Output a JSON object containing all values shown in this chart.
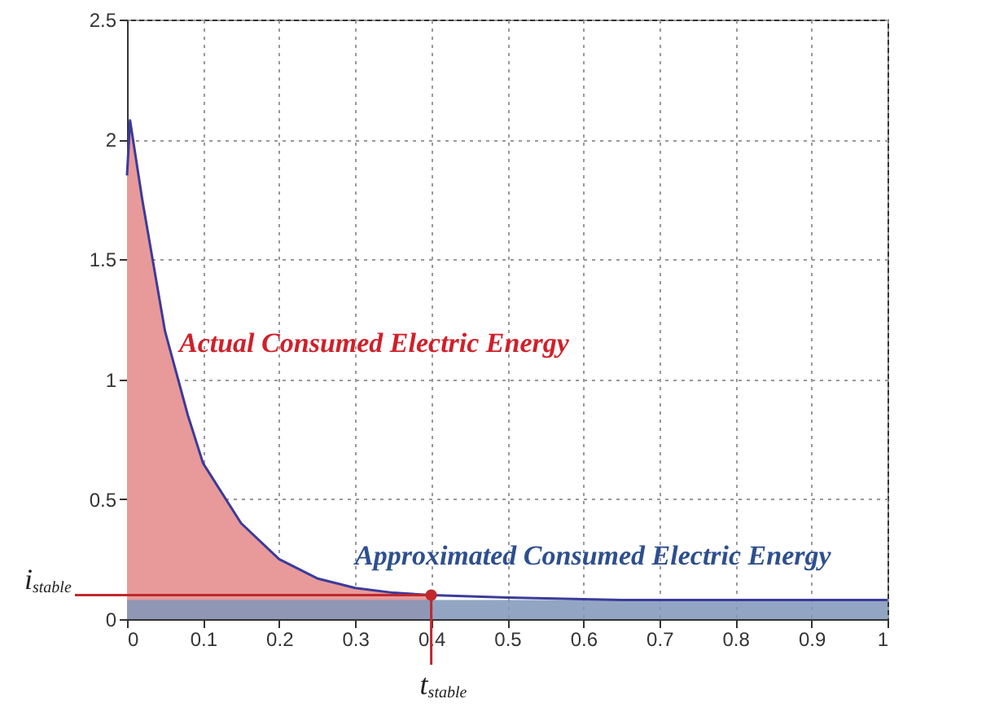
{
  "chart_data": {
    "type": "area",
    "series": [
      {
        "color": "#e89a9a",
        "x": [
          0,
          0.004,
          0.02,
          0.05,
          0.08,
          0.1,
          0.15,
          0.2,
          0.25,
          0.3,
          0.35,
          0.4
        ],
        "values": [
          1.85,
          2.08,
          1.75,
          1.2,
          0.85,
          0.65,
          0.4,
          0.25,
          0.17,
          0.13,
          0.11,
          0.1
        ]
      },
      {
        "color": "#7f97b8",
        "x": [
          0,
          1
        ],
        "values": [
          0.08,
          0.08
        ]
      },
      {
        "type": "line",
        "color": "#3b3b9a",
        "x": [
          0,
          0.004,
          0.02,
          0.05,
          0.08,
          0.1,
          0.15,
          0.2,
          0.25,
          0.3,
          0.35,
          0.4,
          0.5,
          0.65,
          1
        ],
        "values": [
          1.85,
          2.08,
          1.75,
          1.2,
          0.85,
          0.65,
          0.4,
          0.25,
          0.17,
          0.13,
          0.11,
          0.1,
          0.09,
          0.08,
          0.08
        ]
      }
    ],
    "annotations": [
      "Actual Consumed Electric Energy",
      "Approximated Consumed Electric Energy"
    ],
    "ref_lines": [
      {
        "axis": "y",
        "value": 0.1,
        "label": "i$_{stable}$",
        "color": "#c0282d"
      },
      {
        "axis": "x",
        "value": 0.4,
        "label": "t$_{stable}$",
        "color": "#c0282d"
      }
    ],
    "xlim": [
      0,
      1
    ],
    "xticks": [
      0,
      0.1,
      0.2,
      0.3,
      0.4,
      0.5,
      0.6,
      0.7,
      0.8,
      0.9,
      1
    ],
    "ylim": [
      0,
      2.5
    ],
    "yticks": [
      0,
      0.5,
      1,
      1.5,
      2,
      2.5
    ],
    "grid": true,
    "marker": "none",
    "line_style": "solid"
  }
}
